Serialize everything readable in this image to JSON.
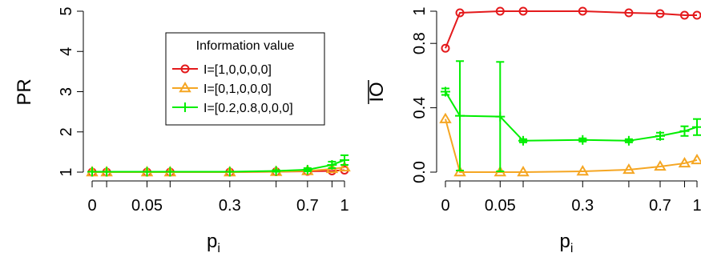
{
  "chart_data": [
    {
      "type": "line",
      "ylabel": "PR",
      "xlabel": {
        "base": "p",
        "sub": "i"
      },
      "x_tick_labels": [
        "0",
        "0.05",
        "0.3",
        "0.7",
        "1"
      ],
      "y_tick_labels": [
        "1",
        "2",
        "3",
        "4",
        "5"
      ],
      "ylim": [
        1,
        5
      ],
      "legend": {
        "title": "Information value",
        "entries": [
          "I=[1,0,0,0,0]",
          "I=[0,1,0,0,0]",
          "I=[0.2,0.8,0,0,0]"
        ]
      },
      "series": [
        {
          "name": "I=[1,0,0,0,0]",
          "color": "#e41a1c",
          "marker": "circle",
          "values": [
            1.0,
            1.0,
            1.0,
            1.0,
            1.0,
            1.01,
            1.02,
            1.03,
            1.05
          ]
        },
        {
          "name": "I=[0,1,0,0,0]",
          "color": "#f5a623",
          "marker": "triangle",
          "values": [
            1.0,
            1.0,
            1.0,
            1.0,
            1.0,
            1.01,
            1.03,
            1.08,
            1.12
          ]
        },
        {
          "name": "I=[0.2,0.8,0,0,0]",
          "color": "#00ee00",
          "marker": "plus",
          "values": [
            1.01,
            1.01,
            1.01,
            1.01,
            1.01,
            1.03,
            1.06,
            1.18,
            1.3
          ],
          "err": [
            0,
            0,
            0,
            0,
            0,
            0.02,
            0.04,
            0.08,
            0.12
          ]
        }
      ]
    },
    {
      "type": "line",
      "ylabel": "IO",
      "ylabel_overline": true,
      "xlabel": {
        "base": "p",
        "sub": "i"
      },
      "x_tick_labels": [
        "0",
        "0.05",
        "0.3",
        "0.7",
        "1"
      ],
      "y_tick_labels": [
        "0.0",
        "0.4",
        "0.8",
        "1"
      ],
      "ylim": [
        0,
        1
      ],
      "series": [
        {
          "name": "I=[1,0,0,0,0]",
          "color": "#e41a1c",
          "marker": "circle",
          "values": [
            0.77,
            0.99,
            1.0,
            1.0,
            1.0,
            0.99,
            0.985,
            0.975,
            0.975
          ]
        },
        {
          "name": "I=[0,1,0,0,0]",
          "color": "#f5a623",
          "marker": "triangle",
          "values": [
            0.33,
            0.0,
            0.0,
            0.0,
            0.005,
            0.015,
            0.035,
            0.055,
            0.075
          ]
        },
        {
          "name": "I=[0.2,0.8,0,0,0]",
          "color": "#00ee00",
          "marker": "plus",
          "values": [
            0.5,
            0.35,
            0.345,
            0.195,
            0.2,
            0.195,
            0.225,
            0.255,
            0.28
          ],
          "err": [
            0.02,
            0.34,
            0.34,
            0.01,
            0.01,
            0.01,
            0.02,
            0.03,
            0.05
          ]
        }
      ]
    }
  ]
}
